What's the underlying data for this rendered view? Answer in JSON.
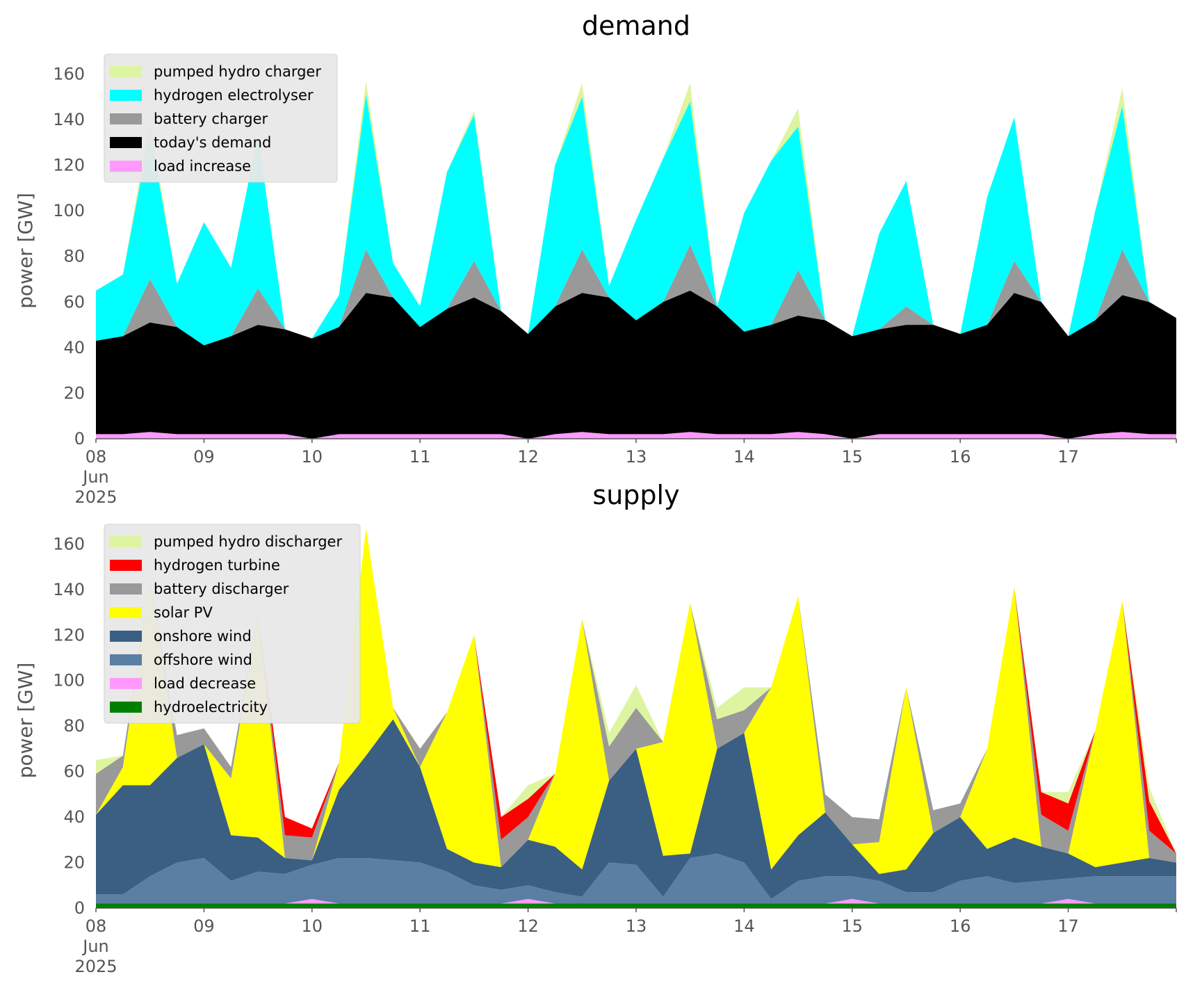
{
  "chart_data": [
    {
      "type": "area",
      "stacked": true,
      "title": "demand",
      "ylabel": "power [GW]",
      "xlabel": "",
      "ylim": [
        0,
        165
      ],
      "yticks": [
        0,
        20,
        40,
        60,
        80,
        100,
        120,
        140,
        160
      ],
      "xlim": [
        "2025-06-08 00:00",
        "2025-06-18 00:00"
      ],
      "xtick_labels": [
        "08\nJun\n2025",
        "09",
        "10",
        "11",
        "12",
        "13",
        "14",
        "15",
        "16",
        "17"
      ],
      "grid": false,
      "legend_position": "top-left",
      "legend": [
        "pumped hydro charger",
        "hydrogen electrolyser",
        "battery charger",
        "today's demand",
        "load increase"
      ],
      "x": [
        "2025-06-08 00:00",
        "2025-06-08 06:00",
        "2025-06-08 12:00",
        "2025-06-08 18:00",
        "2025-06-09 00:00",
        "2025-06-09 06:00",
        "2025-06-09 12:00",
        "2025-06-09 18:00",
        "2025-06-10 00:00",
        "2025-06-10 06:00",
        "2025-06-10 12:00",
        "2025-06-10 18:00",
        "2025-06-11 00:00",
        "2025-06-11 06:00",
        "2025-06-11 12:00",
        "2025-06-11 18:00",
        "2025-06-12 00:00",
        "2025-06-12 06:00",
        "2025-06-12 12:00",
        "2025-06-12 18:00",
        "2025-06-13 00:00",
        "2025-06-13 06:00",
        "2025-06-13 12:00",
        "2025-06-13 18:00",
        "2025-06-14 00:00",
        "2025-06-14 06:00",
        "2025-06-14 12:00",
        "2025-06-14 18:00",
        "2025-06-15 00:00",
        "2025-06-15 06:00",
        "2025-06-15 12:00",
        "2025-06-15 18:00",
        "2025-06-16 00:00",
        "2025-06-16 06:00",
        "2025-06-16 12:00",
        "2025-06-16 18:00",
        "2025-06-17 00:00",
        "2025-06-17 06:00",
        "2025-06-17 12:00",
        "2025-06-17 18:00",
        "2025-06-18 00:00"
      ],
      "series": [
        {
          "name": "load increase",
          "color": "#ff99ff",
          "values": [
            2,
            2,
            3,
            2,
            2,
            2,
            2,
            2,
            0,
            2,
            2,
            2,
            2,
            2,
            2,
            2,
            0,
            2,
            3,
            2,
            2,
            2,
            3,
            2,
            2,
            2,
            3,
            2,
            0,
            2,
            2,
            2,
            2,
            2,
            2,
            2,
            0,
            2,
            3,
            2,
            2
          ]
        },
        {
          "name": "today's demand",
          "color": "#000000",
          "values": [
            41,
            43,
            48,
            47,
            39,
            43,
            48,
            46,
            44,
            47,
            62,
            60,
            47,
            55,
            60,
            54,
            46,
            56,
            61,
            60,
            50,
            58,
            62,
            56,
            45,
            48,
            51,
            50,
            45,
            46,
            48,
            48,
            44,
            48,
            62,
            58,
            45,
            50,
            60,
            58,
            51
          ]
        },
        {
          "name": "battery charger",
          "color": "#999999",
          "values": [
            0,
            0,
            19,
            0,
            0,
            0,
            16,
            0,
            0,
            0,
            19,
            0,
            0,
            0,
            16,
            0,
            0,
            0,
            19,
            0,
            0,
            0,
            20,
            0,
            0,
            0,
            20,
            0,
            0,
            0,
            8,
            0,
            0,
            0,
            14,
            0,
            0,
            0,
            20,
            0,
            0
          ]
        },
        {
          "name": "hydrogen electrolyser",
          "color": "#00ffff",
          "values": [
            22,
            27,
            65,
            19,
            54,
            30,
            67,
            0,
            0,
            14,
            68,
            15,
            9,
            60,
            64,
            0,
            0,
            62,
            67,
            5,
            44,
            63,
            63,
            0,
            52,
            72,
            63,
            0,
            0,
            42,
            55,
            0,
            0,
            56,
            63,
            0,
            0,
            48,
            63,
            0,
            0
          ]
        },
        {
          "name": "pumped hydro charger",
          "color": "#ddf5a0",
          "values": [
            0,
            0,
            5,
            0,
            0,
            0,
            0,
            0,
            0,
            0,
            6,
            0,
            0,
            0,
            2,
            0,
            0,
            0,
            6,
            0,
            0,
            0,
            8,
            0,
            0,
            0,
            8,
            0,
            0,
            0,
            0,
            0,
            0,
            0,
            0,
            0,
            0,
            0,
            8,
            0,
            0
          ]
        }
      ]
    },
    {
      "type": "area",
      "stacked": true,
      "title": "supply",
      "ylabel": "power [GW]",
      "xlabel": "",
      "ylim": [
        0,
        165
      ],
      "yticks": [
        0,
        20,
        40,
        60,
        80,
        100,
        120,
        140,
        160
      ],
      "xlim": [
        "2025-06-08 00:00",
        "2025-06-18 00:00"
      ],
      "xtick_labels": [
        "08\nJun\n2025",
        "09",
        "10",
        "11",
        "12",
        "13",
        "14",
        "15",
        "16",
        "17"
      ],
      "grid": false,
      "legend_position": "top-left",
      "legend": [
        "pumped hydro discharger",
        "hydrogen turbine",
        "battery discharger",
        "solar PV",
        "onshore wind",
        "offshore wind",
        "load decrease",
        "hydroelectricity"
      ],
      "x": [
        "2025-06-08 00:00",
        "2025-06-08 06:00",
        "2025-06-08 12:00",
        "2025-06-08 18:00",
        "2025-06-09 00:00",
        "2025-06-09 06:00",
        "2025-06-09 12:00",
        "2025-06-09 18:00",
        "2025-06-10 00:00",
        "2025-06-10 06:00",
        "2025-06-10 12:00",
        "2025-06-10 18:00",
        "2025-06-11 00:00",
        "2025-06-11 06:00",
        "2025-06-11 12:00",
        "2025-06-11 18:00",
        "2025-06-12 00:00",
        "2025-06-12 06:00",
        "2025-06-12 12:00",
        "2025-06-12 18:00",
        "2025-06-13 00:00",
        "2025-06-13 06:00",
        "2025-06-13 12:00",
        "2025-06-13 18:00",
        "2025-06-14 00:00",
        "2025-06-14 06:00",
        "2025-06-14 12:00",
        "2025-06-14 18:00",
        "2025-06-15 00:00",
        "2025-06-15 06:00",
        "2025-06-15 12:00",
        "2025-06-15 18:00",
        "2025-06-16 00:00",
        "2025-06-16 06:00",
        "2025-06-16 12:00",
        "2025-06-16 18:00",
        "2025-06-17 00:00",
        "2025-06-17 06:00",
        "2025-06-17 12:00",
        "2025-06-17 18:00",
        "2025-06-18 00:00"
      ],
      "series": [
        {
          "name": "hydroelectricity",
          "color": "#008000",
          "values": [
            2,
            2,
            2,
            2,
            2,
            2,
            2,
            2,
            2,
            2,
            2,
            2,
            2,
            2,
            2,
            2,
            2,
            2,
            2,
            2,
            2,
            2,
            2,
            2,
            2,
            2,
            2,
            2,
            2,
            2,
            2,
            2,
            2,
            2,
            2,
            2,
            2,
            2,
            2,
            2,
            2
          ]
        },
        {
          "name": "load decrease",
          "color": "#ff99ff",
          "values": [
            0,
            0,
            0,
            0,
            0,
            0,
            0,
            0,
            2,
            0,
            0,
            0,
            0,
            0,
            0,
            0,
            2,
            0,
            0,
            0,
            0,
            0,
            0,
            0,
            0,
            0,
            0,
            0,
            2,
            0,
            0,
            0,
            0,
            0,
            0,
            0,
            2,
            0,
            0,
            0,
            0
          ]
        },
        {
          "name": "offshore wind",
          "color": "#5b7fa3",
          "values": [
            4,
            4,
            12,
            18,
            20,
            10,
            14,
            13,
            15,
            20,
            20,
            19,
            18,
            14,
            8,
            6,
            6,
            5,
            3,
            18,
            17,
            3,
            20,
            22,
            18,
            2,
            10,
            12,
            10,
            10,
            5,
            5,
            10,
            12,
            9,
            10,
            9,
            12,
            12,
            12,
            12
          ]
        },
        {
          "name": "onshore wind",
          "color": "#3a5f82",
          "values": [
            35,
            48,
            40,
            46,
            50,
            20,
            15,
            7,
            2,
            30,
            45,
            62,
            42,
            10,
            10,
            10,
            20,
            20,
            12,
            36,
            51,
            18,
            2,
            46,
            57,
            13,
            20,
            28,
            14,
            3,
            10,
            26,
            28,
            12,
            20,
            15,
            11,
            4,
            6,
            8,
            6
          ]
        },
        {
          "name": "solar PV",
          "color": "#ffff00",
          "values": [
            0,
            8,
            90,
            0,
            0,
            25,
            98,
            0,
            0,
            12,
            100,
            5,
            0,
            60,
            100,
            0,
            0,
            32,
            110,
            0,
            0,
            50,
            110,
            0,
            0,
            80,
            105,
            0,
            0,
            14,
            80,
            0,
            0,
            44,
            110,
            0,
            0,
            60,
            115,
            0,
            0
          ]
        },
        {
          "name": "battery discharger",
          "color": "#999999",
          "values": [
            18,
            5,
            0,
            10,
            7,
            5,
            0,
            10,
            10,
            0,
            0,
            0,
            8,
            0,
            0,
            12,
            10,
            0,
            0,
            15,
            18,
            0,
            0,
            13,
            10,
            0,
            0,
            8,
            12,
            10,
            0,
            10,
            6,
            0,
            0,
            14,
            10,
            0,
            0,
            12,
            4
          ]
        },
        {
          "name": "hydrogen turbine",
          "color": "#ff0000",
          "values": [
            0,
            0,
            0,
            0,
            0,
            0,
            0,
            8,
            4,
            0,
            0,
            0,
            0,
            0,
            0,
            10,
            8,
            0,
            0,
            0,
            0,
            0,
            0,
            0,
            0,
            0,
            0,
            0,
            0,
            0,
            0,
            0,
            0,
            0,
            0,
            10,
            12,
            0,
            0,
            13,
            0
          ]
        },
        {
          "name": "pumped hydro discharger",
          "color": "#ddf5a0",
          "values": [
            6,
            0,
            0,
            0,
            0,
            0,
            0,
            0,
            0,
            0,
            0,
            0,
            0,
            0,
            0,
            0,
            6,
            0,
            0,
            6,
            10,
            0,
            0,
            5,
            10,
            0,
            0,
            0,
            0,
            0,
            0,
            0,
            0,
            0,
            0,
            0,
            5,
            0,
            0,
            6,
            0
          ]
        }
      ]
    }
  ]
}
